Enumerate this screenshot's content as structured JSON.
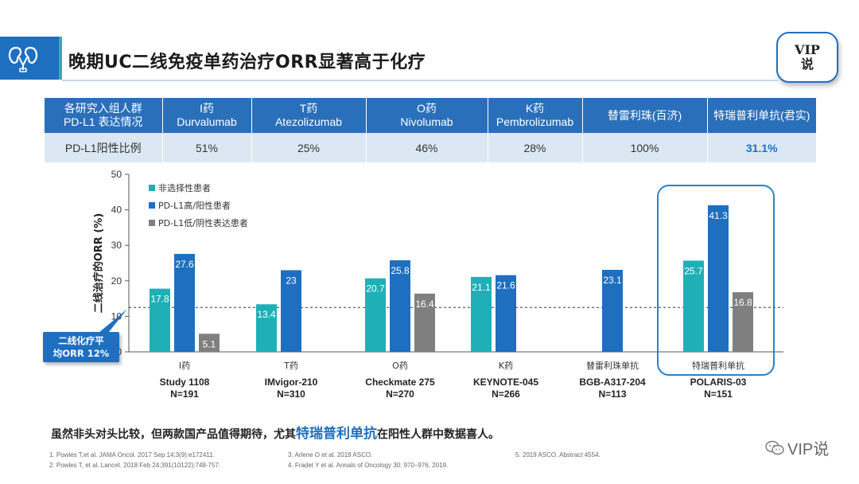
{
  "header": {
    "title": "晚期UC二线免疫单药治疗ORR显著高于化疗",
    "badge_line1": "VIP",
    "badge_line2": "说"
  },
  "table": {
    "headers": [
      "各研究入组人群\nPD-L1 表达情况",
      "I药\nDurvalumab",
      "T药\nAtezolizumab",
      "O药\nNivolumab",
      "K药\nPembrolizumab",
      "替雷利珠(百济)",
      "特瑞普利单抗(君实)"
    ],
    "row_label": "PD-L1阳性比例",
    "values": [
      "51%",
      "25%",
      "46%",
      "28%",
      "100%",
      "31.1%"
    ]
  },
  "callout": {
    "line1": "二线化疗平",
    "line2": "均ORR 12%"
  },
  "chart_data": {
    "type": "bar",
    "ylabel": "二线治疗的ORR (%)",
    "ylim": [
      0,
      50
    ],
    "yticks": [
      0,
      10,
      20,
      30,
      40,
      50
    ],
    "reference_line": 12.5,
    "legend": [
      "非选择性患者",
      "PD-L1高/阳性患者",
      "PD-L1低/阴性表达患者"
    ],
    "series_colors": [
      "#1fb0b7",
      "#1f6fc0",
      "#7f7f7f"
    ],
    "groups": [
      {
        "drug": "I药",
        "study": "Study 1108",
        "n": "N=191",
        "values": [
          17.8,
          27.6,
          5.1
        ]
      },
      {
        "drug": "T药",
        "study": "IMvigor-210",
        "n": "N=310",
        "values": [
          13.4,
          23,
          null
        ]
      },
      {
        "drug": "O药",
        "study": "Checkmate 275",
        "n": "N=270",
        "values": [
          20.7,
          25.8,
          16.4
        ]
      },
      {
        "drug": "K药",
        "study": "KEYNOTE-045",
        "n": "N=266",
        "values": [
          21.1,
          21.6,
          null
        ]
      },
      {
        "drug": "替雷利珠单抗",
        "study": "BGB-A317-204",
        "n": "N=113",
        "values": [
          null,
          23.1,
          null
        ]
      },
      {
        "drug": "特瑞普利单抗",
        "study": "POLARIS-03",
        "n": "N=151",
        "values": [
          25.7,
          41.3,
          16.8
        ]
      }
    ],
    "highlighted_group": 5
  },
  "summary": {
    "part1": "虽然非头对头比较，但两款国产品值得期待，尤其",
    "emphasis": "特瑞普利单抗",
    "part2": "在阳性人群中数据喜人。"
  },
  "references": [
    "1.    Powles T,et al. JAMA Oncol. 2017 Sep 14;3(9):e172411.",
    "2.    Powles T, et al. Lancet. 2018 Feb 24;391(10122):748-757.",
    "3.    Arlene O et al. 2019 ASCO.",
    "4.    Fradet Y et al. Annals of Oncology 30: 970–976, 2019.",
    "5.    2019 ASCO. Abstract 4554."
  ],
  "footer": {
    "logo_text": "VIP说"
  }
}
